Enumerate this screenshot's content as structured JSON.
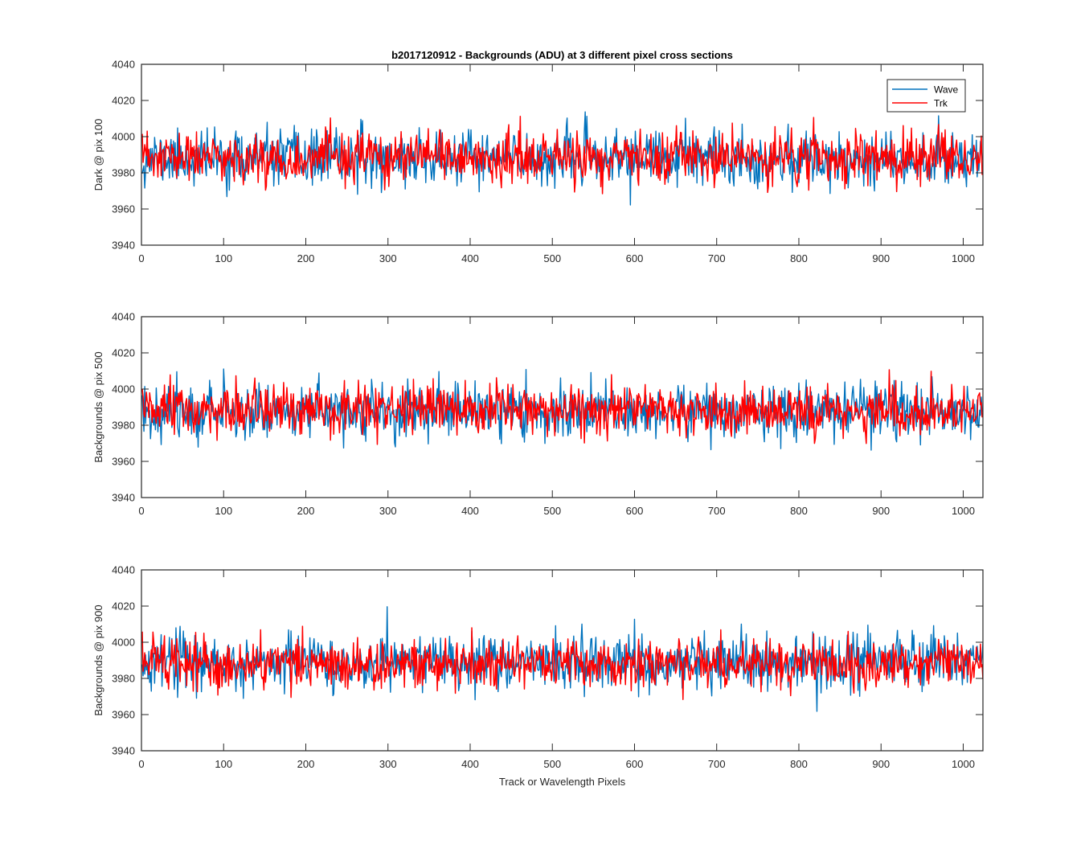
{
  "chart_data": [
    {
      "type": "line",
      "title": "b2017120912 - Backgrounds (ADU) at 3 different pixel cross sections",
      "xlabel": "",
      "ylabel": "Dark @ pix 100",
      "xlim": [
        0,
        1024
      ],
      "ylim": [
        3940,
        4040
      ],
      "x_ticks": [
        "0",
        "100",
        "200",
        "300",
        "400",
        "500",
        "600",
        "700",
        "800",
        "900",
        "1000"
      ],
      "y_ticks": [
        "3940",
        "3960",
        "3980",
        "4000",
        "4020",
        "4040"
      ],
      "grid": false,
      "legend": {
        "placement": "top-right",
        "entries": [
          "Wave",
          "Trk"
        ]
      },
      "series": [
        {
          "name": "Wave",
          "color": "#0072BD",
          "mean": 3988,
          "spread": 12,
          "seed": 11,
          "n": 1024
        },
        {
          "name": "Trk",
          "color": "#FF0000",
          "mean": 3988,
          "spread": 11,
          "seed": 23,
          "n": 1024
        }
      ]
    },
    {
      "type": "line",
      "title": "",
      "xlabel": "",
      "ylabel": "Backgrounds @ pix 500",
      "xlim": [
        0,
        1024
      ],
      "ylim": [
        3940,
        4040
      ],
      "x_ticks": [
        "0",
        "100",
        "200",
        "300",
        "400",
        "500",
        "600",
        "700",
        "800",
        "900",
        "1000"
      ],
      "y_ticks": [
        "3940",
        "3960",
        "3980",
        "4000",
        "4020",
        "4040"
      ],
      "grid": false,
      "series": [
        {
          "name": "Wave",
          "color": "#0072BD",
          "mean": 3988,
          "spread": 12,
          "seed": 37,
          "n": 1024
        },
        {
          "name": "Trk",
          "color": "#FF0000",
          "mean": 3988,
          "spread": 11,
          "seed": 51,
          "n": 1024
        }
      ]
    },
    {
      "type": "line",
      "title": "",
      "xlabel": "Track or Wavelength Pixels",
      "ylabel": "Backgrounds @ pix 900",
      "xlim": [
        0,
        1024
      ],
      "ylim": [
        3940,
        4040
      ],
      "x_ticks": [
        "0",
        "100",
        "200",
        "300",
        "400",
        "500",
        "600",
        "700",
        "800",
        "900",
        "1000"
      ],
      "y_ticks": [
        "3940",
        "3960",
        "3980",
        "4000",
        "4020",
        "4040"
      ],
      "grid": false,
      "series": [
        {
          "name": "Wave",
          "color": "#0072BD",
          "mean": 3989,
          "spread": 12,
          "seed": 67,
          "n": 1024
        },
        {
          "name": "Trk",
          "color": "#FF0000",
          "mean": 3988,
          "spread": 11,
          "seed": 79,
          "n": 1024
        }
      ]
    }
  ]
}
